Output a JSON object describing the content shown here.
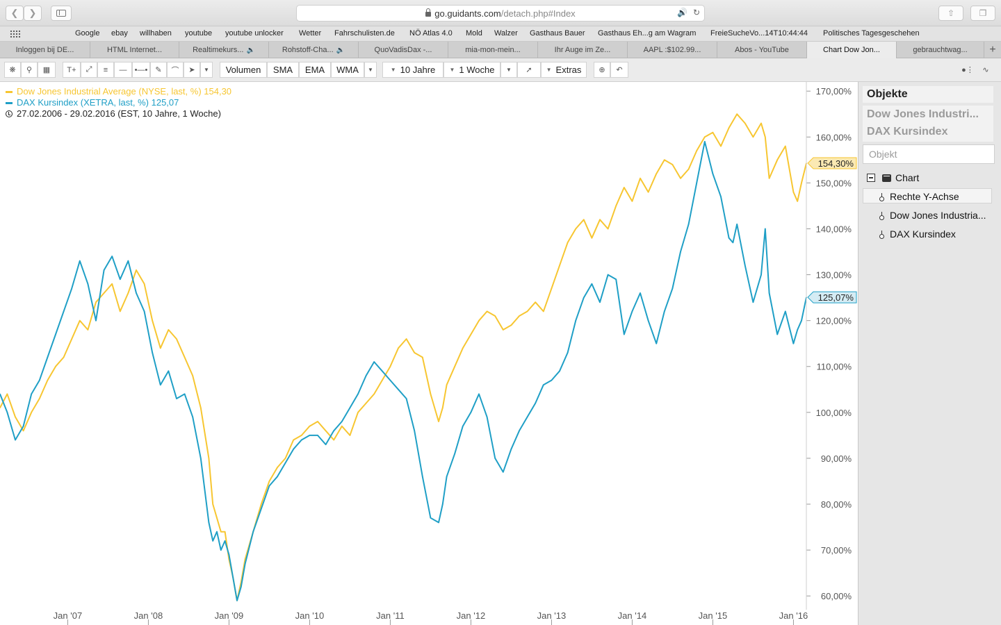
{
  "browser": {
    "url_domain": "go.guidants.com",
    "url_path": "/detach.php#Index",
    "favorites": [
      "Google",
      "ebay",
      "willhaben",
      "youtube",
      "youtube unlocker",
      "Wetter",
      "Fahrschulisten.de",
      "NÖ Atlas 4.0",
      "Mold",
      "Walzer",
      "Gasthaus Bauer",
      "Gasthaus Eh...g am Wagram",
      "FreieSucheVo...14T10:44:44",
      "Politisches Tagesgeschehen"
    ],
    "tabs": [
      {
        "label": "Inloggen bij DE...",
        "audio": false,
        "active": false
      },
      {
        "label": "HTML Internet...",
        "audio": false,
        "active": false
      },
      {
        "label": "Realtimekurs...",
        "audio": true,
        "active": false
      },
      {
        "label": "Rohstoff-Cha...",
        "audio": true,
        "active": false
      },
      {
        "label": "QuoVadisDax -...",
        "audio": false,
        "active": false
      },
      {
        "label": "mia-mon-mein...",
        "audio": false,
        "active": false
      },
      {
        "label": "Ihr Auge im Ze...",
        "audio": false,
        "active": false
      },
      {
        "label": "AAPL :$102.99...",
        "audio": false,
        "active": false
      },
      {
        "label": "Abos - YouTube",
        "audio": false,
        "active": false
      },
      {
        "label": "Chart Dow Jon...",
        "audio": false,
        "active": true
      },
      {
        "label": "gebrauchtwag...",
        "audio": false,
        "active": false
      }
    ],
    "tab_add": "+"
  },
  "toolbar": {
    "text_tool": "T+",
    "indicators": [
      "Volumen",
      "SMA",
      "EMA",
      "WMA"
    ],
    "range": "10 Jahre",
    "interval": "1 Woche",
    "extras": "Extras"
  },
  "legend": {
    "series1": "Dow Jones Industrial Average (NYSE, last, %) 154,30",
    "series2": "DAX Kursindex (XETRA, last, %) 125,07",
    "period": "27.02.2006 - 29.02.2016 (EST, 10 Jahre, 1 Woche)"
  },
  "sidebar": {
    "title": "Objekte",
    "objects": [
      "Dow Jones Industri...",
      "DAX Kursindex"
    ],
    "search_placeholder": "Objekt",
    "tree_root": "Chart",
    "tree_items": [
      "Rechte Y-Achse",
      "Dow Jones Industria...",
      "DAX Kursindex"
    ]
  },
  "colors": {
    "dow": "#f7c631",
    "dax": "#1f9fc6",
    "axis_text": "#555555",
    "label_dow_bg": "#fbe9b3",
    "label_dax_bg": "#d5ecf4"
  },
  "chart_data": {
    "type": "line",
    "title": "",
    "xlabel": "",
    "ylabel": "",
    "ylim": [
      57,
      172
    ],
    "y_ticks": [
      "170,00%",
      "160,00%",
      "150,00%",
      "140,00%",
      "130,00%",
      "120,00%",
      "110,00%",
      "100,00%",
      "90,00%",
      "80,00%",
      "70,00%",
      "60,00%"
    ],
    "y_tick_values": [
      170,
      160,
      150,
      140,
      130,
      120,
      110,
      100,
      90,
      80,
      70,
      60
    ],
    "x_ticks": [
      "Jan '07",
      "Jan '08",
      "Jan '09",
      "Jan '10",
      "Jan '11",
      "Jan '12",
      "Jan '13",
      "Jan '14",
      "Jan '15",
      "Jan '16"
    ],
    "x_tick_values": [
      2007.0,
      2008.0,
      2009.0,
      2010.0,
      2011.0,
      2012.0,
      2013.0,
      2014.0,
      2015.0,
      2016.0
    ],
    "xlim": [
      2006.16,
      2016.16
    ],
    "last_labels": [
      {
        "series": "Dow Jones Industrial Average",
        "text": "154,30%",
        "value": 154.3
      },
      {
        "series": "DAX Kursindex",
        "text": "125,07%",
        "value": 125.07
      }
    ],
    "series": [
      {
        "name": "Dow Jones Industrial Average",
        "x": [
          2006.16,
          2006.25,
          2006.35,
          2006.45,
          2006.55,
          2006.65,
          2006.75,
          2006.85,
          2006.95,
          2007.05,
          2007.15,
          2007.25,
          2007.35,
          2007.45,
          2007.55,
          2007.65,
          2007.75,
          2007.85,
          2007.95,
          2008.05,
          2008.15,
          2008.25,
          2008.35,
          2008.45,
          2008.55,
          2008.65,
          2008.75,
          2008.8,
          2008.85,
          2008.9,
          2008.95,
          2009.0,
          2009.05,
          2009.1,
          2009.15,
          2009.2,
          2009.3,
          2009.4,
          2009.5,
          2009.6,
          2009.7,
          2009.8,
          2009.9,
          2010.0,
          2010.1,
          2010.2,
          2010.3,
          2010.4,
          2010.5,
          2010.6,
          2010.7,
          2010.8,
          2010.9,
          2011.0,
          2011.1,
          2011.2,
          2011.3,
          2011.4,
          2011.5,
          2011.6,
          2011.65,
          2011.7,
          2011.8,
          2011.9,
          2012.0,
          2012.1,
          2012.2,
          2012.3,
          2012.4,
          2012.5,
          2012.6,
          2012.7,
          2012.8,
          2012.9,
          2013.0,
          2013.1,
          2013.2,
          2013.3,
          2013.4,
          2013.5,
          2013.6,
          2013.7,
          2013.8,
          2013.9,
          2014.0,
          2014.1,
          2014.2,
          2014.3,
          2014.4,
          2014.5,
          2014.6,
          2014.7,
          2014.8,
          2014.9,
          2015.0,
          2015.1,
          2015.2,
          2015.3,
          2015.4,
          2015.5,
          2015.6,
          2015.65,
          2015.7,
          2015.8,
          2015.9,
          2016.0,
          2016.05,
          2016.1,
          2016.16
        ],
        "values": [
          101,
          104,
          99,
          96,
          100,
          103,
          107,
          110,
          112,
          116,
          120,
          118,
          124,
          126,
          128,
          122,
          126,
          131,
          128,
          120,
          114,
          118,
          116,
          112,
          108,
          101,
          90,
          80,
          77,
          74,
          74,
          68,
          64,
          59,
          63,
          68,
          74,
          80,
          85,
          88,
          90,
          94,
          95,
          97,
          98,
          96,
          94,
          97,
          95,
          100,
          102,
          104,
          107,
          110,
          114,
          116,
          113,
          112,
          104,
          98,
          101,
          106,
          110,
          114,
          117,
          120,
          122,
          121,
          118,
          119,
          121,
          122,
          124,
          122,
          127,
          132,
          137,
          140,
          142,
          138,
          142,
          140,
          145,
          149,
          146,
          151,
          148,
          152,
          155,
          154,
          151,
          153,
          157,
          160,
          161,
          158,
          162,
          165,
          163,
          160,
          163,
          160,
          151,
          155,
          158,
          148,
          146,
          150,
          154.3
        ]
      },
      {
        "name": "DAX Kursindex",
        "x": [
          2006.16,
          2006.25,
          2006.35,
          2006.45,
          2006.55,
          2006.65,
          2006.75,
          2006.85,
          2006.95,
          2007.05,
          2007.15,
          2007.25,
          2007.35,
          2007.45,
          2007.55,
          2007.65,
          2007.75,
          2007.85,
          2007.95,
          2008.05,
          2008.15,
          2008.25,
          2008.35,
          2008.45,
          2008.55,
          2008.65,
          2008.75,
          2008.8,
          2008.85,
          2008.9,
          2008.95,
          2009.0,
          2009.05,
          2009.1,
          2009.15,
          2009.2,
          2009.3,
          2009.4,
          2009.5,
          2009.6,
          2009.7,
          2009.8,
          2009.9,
          2010.0,
          2010.1,
          2010.2,
          2010.3,
          2010.4,
          2010.5,
          2010.6,
          2010.7,
          2010.8,
          2010.9,
          2011.0,
          2011.1,
          2011.2,
          2011.3,
          2011.4,
          2011.5,
          2011.6,
          2011.65,
          2011.7,
          2011.8,
          2011.9,
          2012.0,
          2012.1,
          2012.2,
          2012.3,
          2012.4,
          2012.5,
          2012.6,
          2012.7,
          2012.8,
          2012.9,
          2013.0,
          2013.1,
          2013.2,
          2013.3,
          2013.4,
          2013.5,
          2013.6,
          2013.7,
          2013.8,
          2013.9,
          2014.0,
          2014.1,
          2014.2,
          2014.3,
          2014.4,
          2014.5,
          2014.6,
          2014.7,
          2014.8,
          2014.9,
          2015.0,
          2015.1,
          2015.2,
          2015.25,
          2015.3,
          2015.4,
          2015.5,
          2015.6,
          2015.65,
          2015.7,
          2015.8,
          2015.9,
          2016.0,
          2016.05,
          2016.1,
          2016.16
        ],
        "values": [
          104,
          100,
          94,
          97,
          104,
          107,
          112,
          117,
          122,
          127,
          133,
          128,
          120,
          131,
          134,
          129,
          133,
          126,
          122,
          113,
          106,
          109,
          103,
          104,
          99,
          90,
          76,
          72,
          74,
          70,
          72,
          69,
          64,
          59,
          62,
          67,
          74,
          79,
          84,
          86,
          89,
          92,
          94,
          95,
          95,
          93,
          96,
          98,
          101,
          104,
          108,
          111,
          109,
          107,
          105,
          103,
          96,
          86,
          77,
          76,
          80,
          86,
          91,
          97,
          100,
          104,
          99,
          90,
          87,
          92,
          96,
          99,
          102,
          106,
          107,
          109,
          113,
          120,
          125,
          128,
          124,
          130,
          129,
          117,
          122,
          126,
          120,
          115,
          122,
          127,
          135,
          141,
          150,
          159,
          152,
          147,
          138,
          137,
          141,
          132,
          124,
          130,
          140,
          126,
          117,
          122,
          115,
          118,
          120,
          125.07
        ]
      }
    ]
  }
}
